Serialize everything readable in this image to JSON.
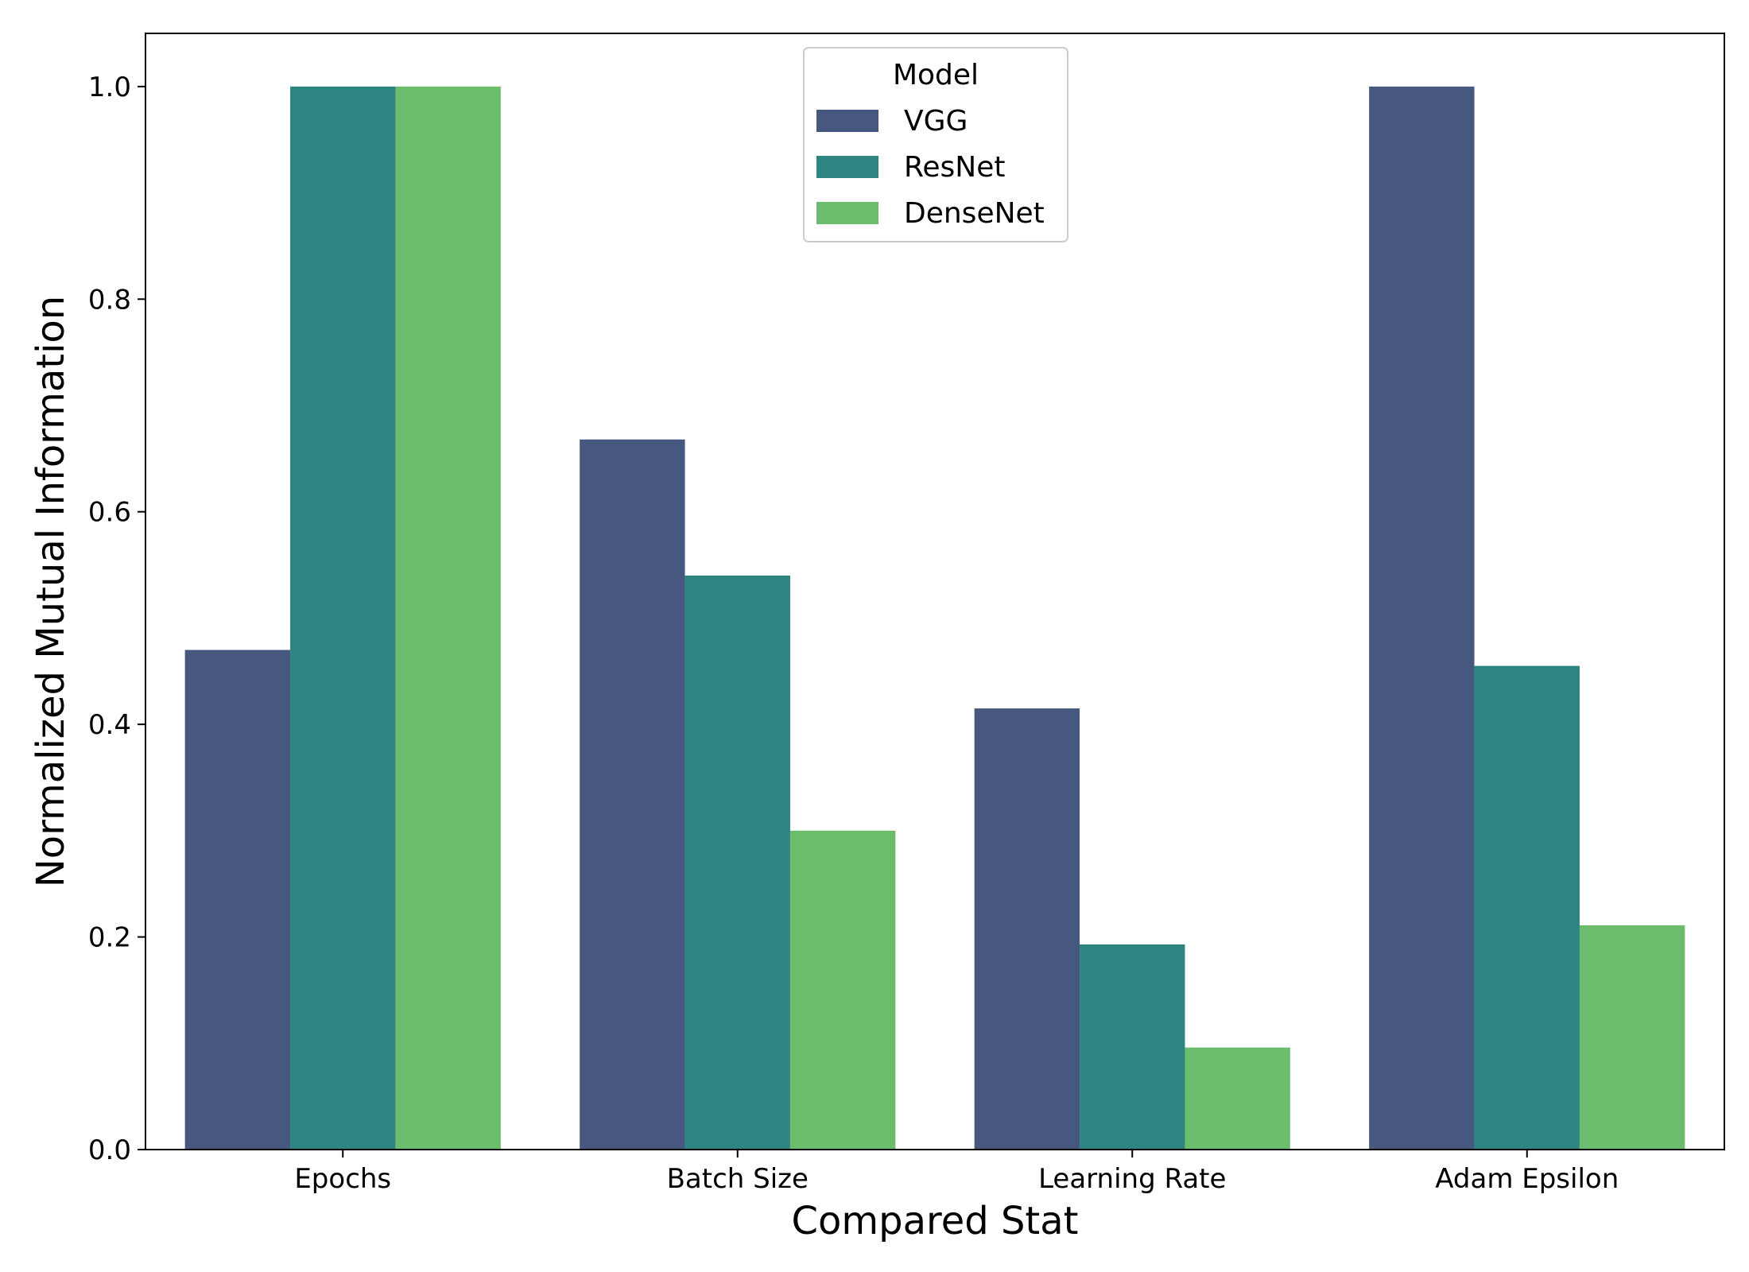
{
  "chart_data": {
    "type": "bar",
    "title": "",
    "xlabel": "Compared Stat",
    "ylabel": "Normalized Mutual Information",
    "categories": [
      "Epochs",
      "Batch Size",
      "Learning Rate",
      "Adam Epsilon"
    ],
    "series": [
      {
        "name": "VGG",
        "color": "#46587f",
        "values": [
          0.47,
          0.668,
          0.415,
          1.0
        ]
      },
      {
        "name": "ResNet",
        "color": "#2e8480",
        "values": [
          1.0,
          0.54,
          0.193,
          0.455
        ]
      },
      {
        "name": "DenseNet",
        "color": "#6bbc6d",
        "values": [
          1.0,
          0.3,
          0.096,
          0.211
        ]
      }
    ],
    "ylim": [
      0,
      1.05
    ],
    "yticks": [
      "0.0",
      "0.2",
      "0.4",
      "0.6",
      "0.8",
      "1.0"
    ],
    "ytick_values": [
      0,
      0.2,
      0.4,
      0.6,
      0.8,
      1.0
    ],
    "legend": {
      "title": "Model",
      "placement": "top-center"
    },
    "grid": false
  }
}
